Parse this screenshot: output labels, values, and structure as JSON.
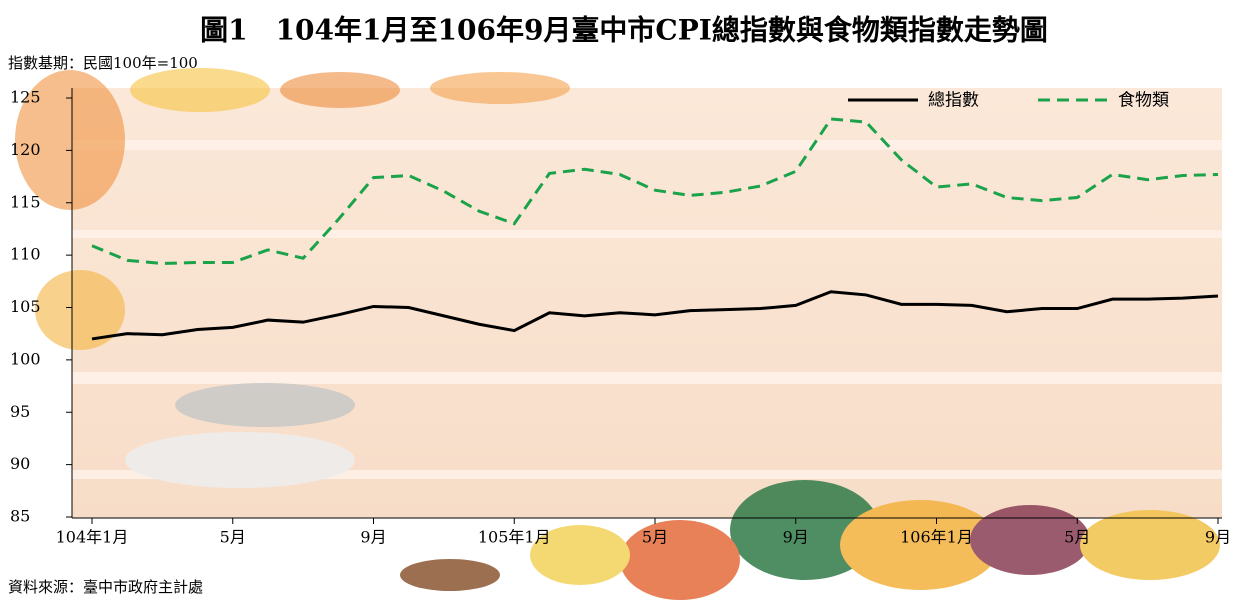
{
  "chart_data": {
    "type": "line",
    "title": "圖1　104年1月至106年9月臺中市CPI總指數與食物類指數走勢圖",
    "subtitle": "指數基期：民國100年=100",
    "source": "資料來源：臺中市政府主計處",
    "categories": [
      "104年1月",
      null,
      null,
      null,
      "5月",
      null,
      null,
      null,
      "9月",
      null,
      null,
      null,
      "105年1月",
      null,
      null,
      null,
      "5月",
      null,
      null,
      null,
      "9月",
      null,
      null,
      null,
      "106年1月",
      null,
      null,
      null,
      "5月",
      null,
      null,
      null,
      "9月"
    ],
    "series": [
      {
        "name": "總指數",
        "color": "#000000",
        "dash": false,
        "values": [
          102.0,
          102.5,
          102.4,
          102.9,
          103.1,
          103.8,
          103.6,
          104.3,
          105.1,
          105.0,
          104.2,
          103.4,
          102.8,
          104.5,
          104.2,
          104.5,
          104.3,
          104.7,
          104.8,
          104.9,
          105.2,
          106.5,
          106.2,
          105.3,
          105.3,
          105.2,
          104.6,
          104.9,
          104.9,
          105.8,
          105.8,
          105.9,
          106.1
        ]
      },
      {
        "name": "食物類",
        "color": "#1aa34a",
        "dash": true,
        "values": [
          110.9,
          109.5,
          109.2,
          109.3,
          109.3,
          110.5,
          109.7,
          113.4,
          117.4,
          117.6,
          116.1,
          114.2,
          113.0,
          117.8,
          118.2,
          117.7,
          116.2,
          115.7,
          116.0,
          116.6,
          118.0,
          123.0,
          122.7,
          119.1,
          116.5,
          116.8,
          115.5,
          115.2,
          115.5,
          117.7,
          117.2,
          117.6,
          117.7
        ]
      }
    ],
    "ylim": [
      85,
      125
    ],
    "yticks": [
      85,
      90,
      95,
      100,
      105,
      110,
      115,
      120,
      125
    ],
    "legend": "upper right"
  }
}
